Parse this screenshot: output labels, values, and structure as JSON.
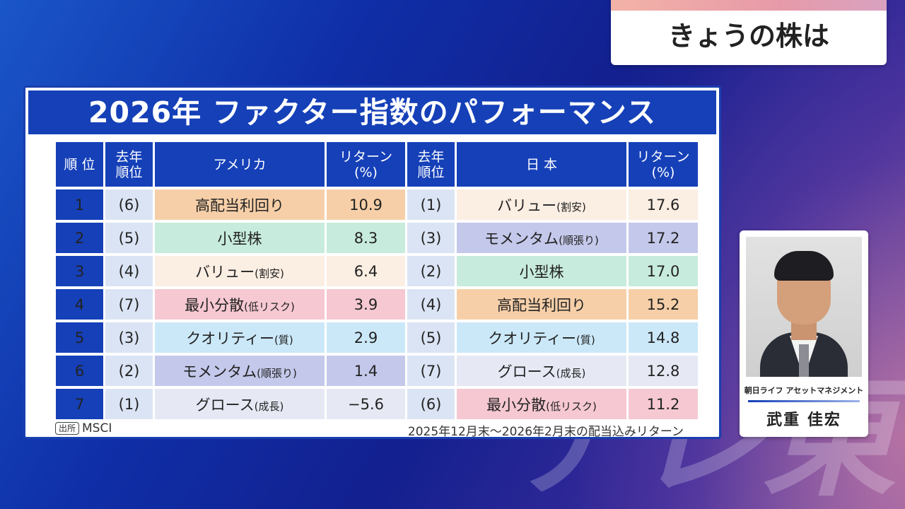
{
  "watermark": "テレ東",
  "program_tag": "きょうの株は",
  "panel": {
    "title": "2026年 ファクター指数のパフォーマンス",
    "headers": {
      "rank": "順 位",
      "prev_rank": "去年\n順位",
      "usa": "アメリカ",
      "return": "リターン\n(%)",
      "prev_rank_jp": "去年\n順位",
      "japan": "日 本",
      "return_jp": "リターン\n(%)"
    },
    "rows": [
      {
        "rank": "1",
        "us_prev": "(6)",
        "us_main": "高配当利回り",
        "us_sub": "",
        "us_return": "10.9",
        "jp_prev": "(1)",
        "jp_main": "バリュー",
        "jp_sub": "(割安)",
        "jp_return": "17.6"
      },
      {
        "rank": "2",
        "us_prev": "(5)",
        "us_main": "小型株",
        "us_sub": "",
        "us_return": "8.3",
        "jp_prev": "(3)",
        "jp_main": "モメンタム",
        "jp_sub": "(順張り)",
        "jp_return": "17.2"
      },
      {
        "rank": "3",
        "us_prev": "(4)",
        "us_main": "バリュー",
        "us_sub": "(割安)",
        "us_return": "6.4",
        "jp_prev": "(2)",
        "jp_main": "小型株",
        "jp_sub": "",
        "jp_return": "17.0"
      },
      {
        "rank": "4",
        "us_prev": "(7)",
        "us_main": "最小分散",
        "us_sub": "(低リスク)",
        "us_return": "3.9",
        "jp_prev": "(4)",
        "jp_main": "高配当利回り",
        "jp_sub": "",
        "jp_return": "15.2"
      },
      {
        "rank": "5",
        "us_prev": "(3)",
        "us_main": "クオリティー",
        "us_sub": "(質)",
        "us_return": "2.9",
        "jp_prev": "(5)",
        "jp_main": "クオリティー",
        "jp_sub": "(質)",
        "jp_return": "14.8"
      },
      {
        "rank": "6",
        "us_prev": "(2)",
        "us_main": "モメンタム",
        "us_sub": "(順張り)",
        "us_return": "1.4",
        "jp_prev": "(7)",
        "jp_main": "グロース",
        "jp_sub": "(成長)",
        "jp_return": "12.8"
      },
      {
        "rank": "7",
        "us_prev": "(1)",
        "us_main": "グロース",
        "us_sub": "(成長)",
        "us_return": "−5.6",
        "jp_prev": "(6)",
        "jp_main": "最小分散",
        "jp_sub": "(低リスク)",
        "jp_return": "11.2"
      }
    ],
    "source_label": "出所",
    "source_value": "MSCI",
    "footnote": "2025年12月末〜2026年2月末の配当込みリターン"
  },
  "factor_colors": {
    "高配当利回り": "#f6cfa8",
    "小型株": "#c7ebdc",
    "バリュー": "#fbeee3",
    "最小分散": "#f5c8d2",
    "クオリティー": "#cbe8f8",
    "モメンタム": "#c4c8ea",
    "グロース": "#e6e9f4"
  },
  "guest": {
    "company": "朝日ライフ アセットマネジメント",
    "name": "武重 佳宏"
  }
}
